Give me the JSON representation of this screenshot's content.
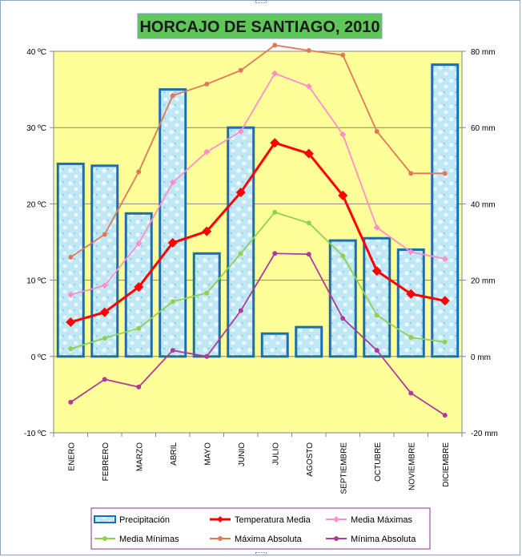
{
  "chart_data": {
    "type": "bar",
    "title": "HORCAJO DE SANTIAGO, 2010",
    "categories": [
      "ENERO",
      "FEBRERO",
      "MARZO",
      "ABRIL",
      "MAYO",
      "JUNIO",
      "JULIO",
      "AGOSTO",
      "SEPTIEMBRE",
      "OCTUBRE",
      "NOVIEMBRE",
      "DICIEMBRE"
    ],
    "left_axis": {
      "min": -10,
      "max": 40,
      "ticks": [
        -10,
        0,
        10,
        20,
        30,
        40
      ],
      "tick_labels": [
        "-10 ºC",
        "0 ºC",
        "10 ºC",
        "20 ºC",
        "30 ºC",
        "40 ºC"
      ]
    },
    "right_axis": {
      "min": -20,
      "max": 80,
      "ticks": [
        -20,
        0,
        20,
        40,
        60,
        80
      ],
      "tick_labels": [
        "-20 mm",
        "0 mm",
        "20 mm",
        "40 mm",
        "60 mm",
        "80 mm"
      ]
    },
    "grid": true,
    "legend_position": "bottom",
    "series": [
      {
        "name": "Precipitación",
        "type": "bar",
        "axis": "right",
        "color": "#1a6fb0",
        "fill": "#b9e4f2",
        "values": [
          50.5,
          50,
          37.5,
          70,
          27,
          60,
          6,
          7.7,
          30.4,
          31,
          28,
          76.5
        ]
      },
      {
        "name": "Temperatura Media",
        "type": "line",
        "axis": "left",
        "color": "#ff0000",
        "marker": "diamond",
        "values": [
          4.5,
          5.8,
          9.1,
          14.9,
          16.4,
          21.5,
          28,
          26.6,
          21.1,
          11.2,
          8.2,
          7.3
        ]
      },
      {
        "name": "Media Máximas",
        "type": "line",
        "axis": "left",
        "color": "#ff8fc8",
        "marker": "diamond",
        "values": [
          8.1,
          9.3,
          14.8,
          22.8,
          26.8,
          29.5,
          37.1,
          35.4,
          29.1,
          16.9,
          13.7,
          12.8
        ]
      },
      {
        "name": "Media Mínimas",
        "type": "line",
        "axis": "left",
        "color": "#92d050",
        "marker": "circle",
        "values": [
          1,
          2.4,
          3.7,
          7.2,
          8.3,
          13.5,
          18.9,
          17.5,
          13.2,
          5.4,
          2.5,
          1.9
        ]
      },
      {
        "name": "Máxima Absoluta",
        "type": "line",
        "axis": "left",
        "color": "#e0785a",
        "marker": "circle",
        "values": [
          13,
          16,
          24.2,
          34.2,
          35.7,
          37.5,
          40.8,
          40.1,
          39.5,
          29.5,
          24,
          24
        ]
      },
      {
        "name": "Mínima Absoluta",
        "type": "line",
        "axis": "left",
        "color": "#b03a9c",
        "marker": "circle",
        "values": [
          -6,
          -3,
          -4,
          0.8,
          0,
          6,
          13.5,
          13.4,
          5,
          0.8,
          -4.8,
          -7.7
        ]
      }
    ]
  }
}
